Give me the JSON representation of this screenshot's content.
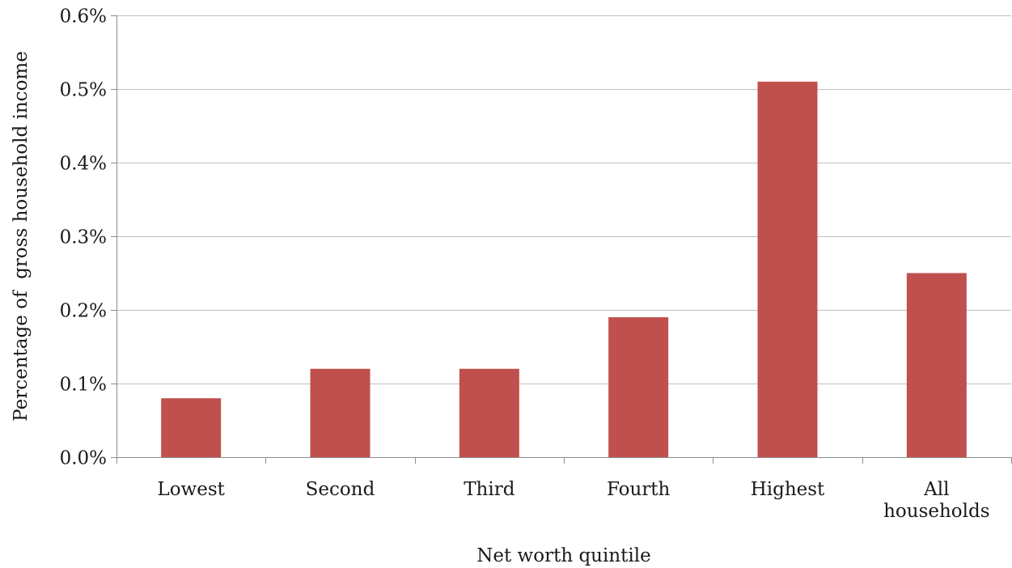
{
  "chart_data": {
    "type": "bar",
    "categories": [
      "Lowest",
      "Second",
      "Third",
      "Fourth",
      "Highest",
      "All households"
    ],
    "category_label_lines": [
      [
        "Lowest"
      ],
      [
        "Second"
      ],
      [
        "Third"
      ],
      [
        "Fourth"
      ],
      [
        "Highest"
      ],
      [
        "All",
        "households"
      ]
    ],
    "values": [
      0.0008,
      0.0012,
      0.0012,
      0.0019,
      0.0051,
      0.0025
    ],
    "xlabel": "Net worth quintile",
    "ylabel": "Percentage of  gross household income",
    "ylim": [
      0,
      0.006
    ],
    "yticks": [
      0,
      0.001,
      0.002,
      0.003,
      0.004,
      0.005,
      0.006
    ],
    "ytick_labels": [
      "0.0%",
      "0.1%",
      "0.2%",
      "0.3%",
      "0.4%",
      "0.5%",
      "0.6%"
    ],
    "grid": true,
    "legend": "none",
    "bar_color": "#C0504D",
    "gridline_color": "#BFBFBF",
    "axis_color": "#8C8C8C"
  }
}
